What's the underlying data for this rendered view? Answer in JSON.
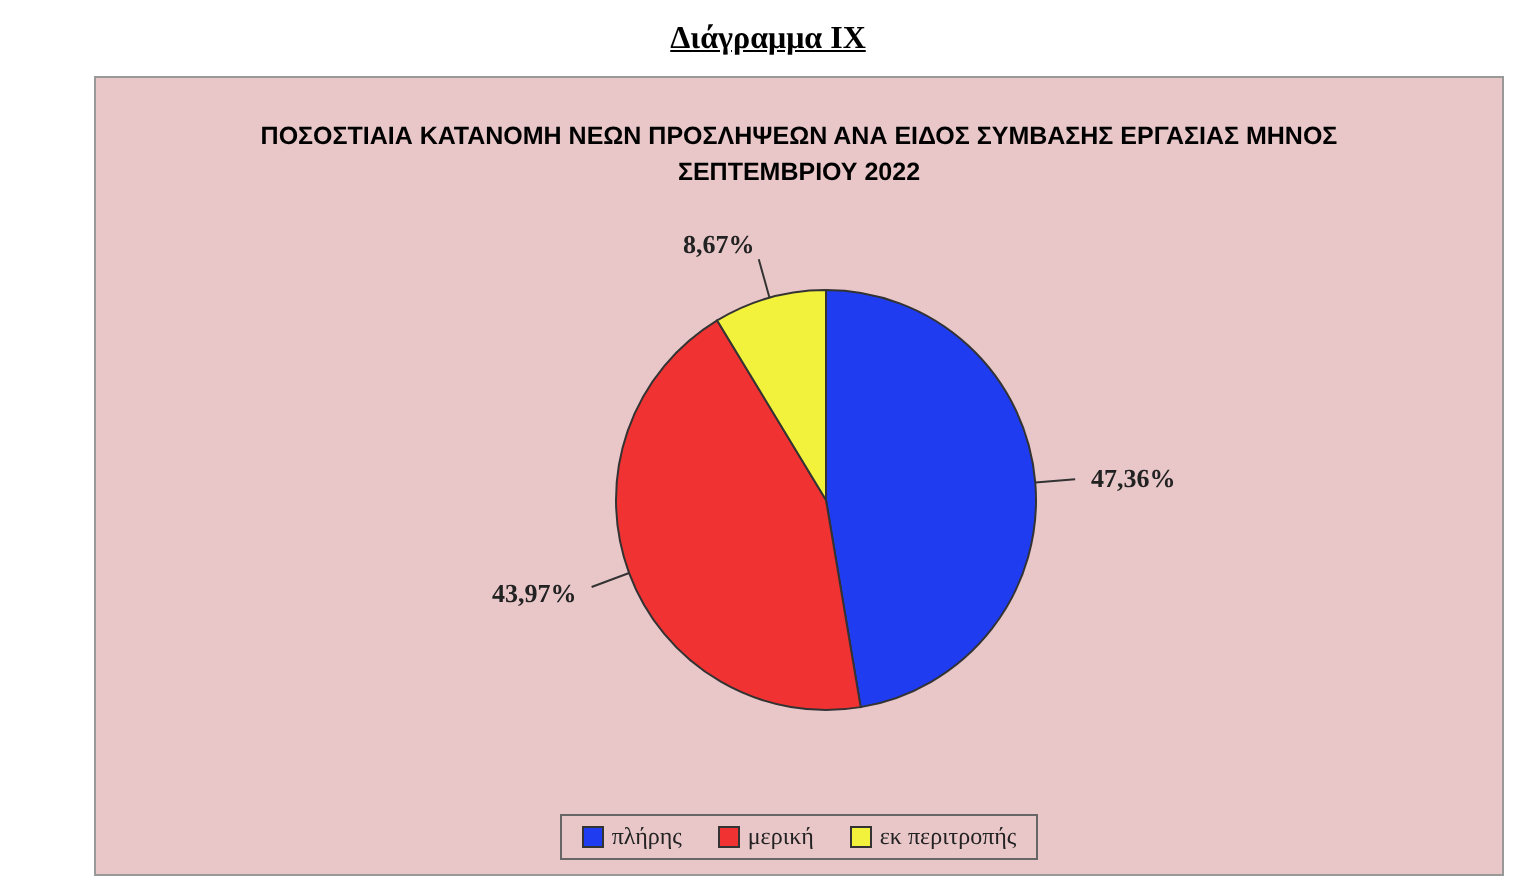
{
  "chart_data": {
    "type": "pie",
    "title": "Διάγραμμα IX",
    "subtitle": "ΠΟΣΟΣΤΙΑΙΑ  ΚΑΤΑΝΟΜΗ  ΝΕΩΝ  ΠΡΟΣΛΗΨΕΩΝ ΑΝΑ ΕΙΔΟΣ ΣΥΜΒΑΣΗΣ ΕΡΓΑΣΙΑΣ ΜΗΝΟΣ  ΣΕΠΤΕΜΒΡΙΟΥ 2022",
    "categories": [
      "πλήρης",
      "μερική",
      "εκ περιτροπής"
    ],
    "values": [
      47.36,
      43.97,
      8.67
    ],
    "colors": [
      "#1f3cf0",
      "#f03232",
      "#f2f23c"
    ],
    "value_labels": [
      "47,36%",
      "43,97%",
      "8,67%"
    ],
    "legend": "bottom"
  }
}
